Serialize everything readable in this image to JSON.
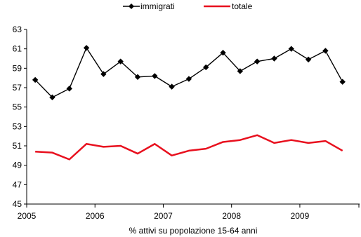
{
  "chart_data": {
    "type": "line",
    "xlabel": "% attivi su popolazione 15-64 anni",
    "ylabel": "",
    "title": "",
    "ylim": [
      45,
      63
    ],
    "yticks": [
      45,
      47,
      49,
      51,
      53,
      55,
      57,
      59,
      61,
      63
    ],
    "x_range": [
      2005,
      2009.875
    ],
    "xticks": [
      "2005",
      "2006",
      "2007",
      "2008",
      "2009"
    ],
    "x": [
      "2005-Q1",
      "2005-Q2",
      "2005-Q3",
      "2005-Q4",
      "2006-Q1",
      "2006-Q2",
      "2006-Q3",
      "2006-Q4",
      "2007-Q1",
      "2007-Q2",
      "2007-Q3",
      "2007-Q4",
      "2008-Q1",
      "2008-Q2",
      "2008-Q3",
      "2008-Q4",
      "2009-Q1",
      "2009-Q2",
      "2009-Q3"
    ],
    "grid": false,
    "legend_position": "top-center",
    "series": [
      {
        "name": "immigrati",
        "color": "#000000",
        "marker": "diamond",
        "values": [
          57.8,
          56.0,
          56.9,
          61.1,
          58.4,
          59.7,
          58.1,
          58.2,
          57.1,
          57.9,
          59.1,
          60.6,
          58.7,
          59.7,
          60.0,
          61.0,
          59.9,
          60.8,
          57.6
        ]
      },
      {
        "name": "totale",
        "color": "#e8101e",
        "marker": "none",
        "values": [
          50.4,
          50.3,
          49.6,
          51.2,
          50.9,
          51.0,
          50.2,
          51.2,
          50.0,
          50.5,
          50.7,
          51.4,
          51.6,
          52.1,
          51.3,
          51.6,
          51.3,
          51.5,
          50.5
        ]
      }
    ]
  }
}
